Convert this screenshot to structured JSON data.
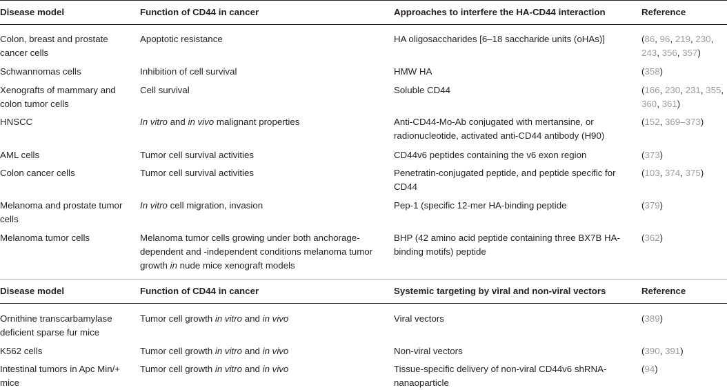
{
  "tables": [
    {
      "headers": [
        "Disease model",
        "Function of CD44 in cancer",
        "Approaches to interfere the HA-CD44 interaction",
        "Reference"
      ],
      "rows": [
        {
          "model": "Colon, breast and prostate cancer cells",
          "function": "Apoptotic resistance",
          "approach": "HA oligosaccharides [6–18 saccharide units (oHAs)]",
          "refs": [
            "86",
            "96",
            "219",
            "230",
            "243",
            "356",
            "357"
          ]
        },
        {
          "model": "Schwannomas cells",
          "function": "Inhibition of cell survival",
          "approach": "HMW HA",
          "refs": [
            "358"
          ]
        },
        {
          "model": "Xenografts of mammary and colon tumor cells",
          "function": "Cell survival",
          "approach": "Soluble CD44",
          "refs": [
            "166",
            "230",
            "231",
            "355",
            "360",
            "361"
          ]
        },
        {
          "model": "HNSCC",
          "function": "In vitro and in vivo malignant properties",
          "approach": "Anti-CD44-Mo-Ab conjugated with mertansine, or radionucleotide, activated anti-CD44 antibody (H90)",
          "refs": [
            "152",
            "369–373"
          ]
        },
        {
          "model": "AML cells",
          "function": "Tumor cell survival activities",
          "approach": "CD44v6 peptides containing the v6 exon region",
          "refs": [
            "373"
          ]
        },
        {
          "model": "Colon cancer cells",
          "function": "Tumor cell survival activities",
          "approach": "Penetratin-conjugated peptide, and peptide specific for CD44",
          "refs": [
            "103",
            "374",
            "375"
          ]
        },
        {
          "model": "Melanoma and prostate tumor cells",
          "function": "In vitro cell migration, invasion",
          "approach": "Pep-1 (specific 12-mer HA-binding peptide",
          "refs": [
            "379"
          ]
        },
        {
          "model": "Melanoma tumor cells",
          "function": "Melanoma tumor cells growing under both anchorage-dependent and -independent conditions melanoma tumor growth in nude mice xenograft models",
          "approach": "BHP (42 amino acid peptide containing three BX7B HA-binding motifs) peptide",
          "refs": [
            "362"
          ]
        }
      ]
    },
    {
      "headers": [
        "Disease model",
        "Function of CD44 in cancer",
        "Systemic targeting by viral and non-viral vectors",
        "Reference"
      ],
      "rows": [
        {
          "model": "Ornithine transcarbamylase deficient sparse fur mice",
          "function": "Tumor cell growth in vitro and in vivo",
          "approach": "Viral vectors",
          "refs": [
            "389"
          ]
        },
        {
          "model": "K562 cells",
          "function": "Tumor cell growth in vitro and in vivo",
          "approach": "Non-viral vectors",
          "refs": [
            "390",
            "391"
          ]
        },
        {
          "model": "Intestinal tumors in Apc Min/+ mice",
          "function": "Tumor cell growth in vitro and in vivo",
          "approach": "Tissue-specific delivery of non-viral CD44v6 shRNA-nanaoparticle",
          "refs": [
            "94"
          ]
        }
      ]
    }
  ]
}
